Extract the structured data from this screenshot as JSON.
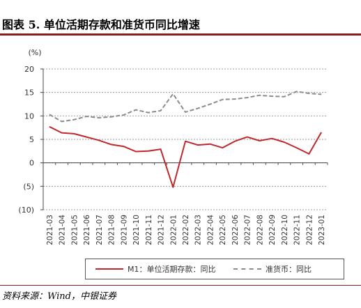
{
  "header": {
    "title": "图表 5. 单位活期存款和准货币同比增速"
  },
  "footer": {
    "source": "资料来源：Wind，中银证券"
  },
  "chart_data": {
    "type": "line",
    "unit_label": "(%)",
    "categories": [
      "2021-03",
      "2021-04",
      "2021-05",
      "2021-06",
      "2021-07",
      "2021-08",
      "2021-09",
      "2021-10",
      "2021-11",
      "2021-12",
      "2022-01",
      "2022-02",
      "2022-03",
      "2022-04",
      "2022-05",
      "2022-06",
      "2022-07",
      "2022-08",
      "2022-09",
      "2022-10",
      "2022-11",
      "2022-12",
      "2023-01"
    ],
    "ylim": [
      -10,
      20
    ],
    "yticks": [
      {
        "value": 20,
        "label": "20"
      },
      {
        "value": 15,
        "label": "15"
      },
      {
        "value": 10,
        "label": "10"
      },
      {
        "value": 5,
        "label": "5"
      },
      {
        "value": 0,
        "label": "0"
      },
      {
        "value": -5,
        "label": "(5)"
      },
      {
        "value": -10,
        "label": "(10)"
      }
    ],
    "grid": "horizontal-dashed",
    "legend_position": "bottom",
    "series": [
      {
        "name": "M1：单位活期存款：同比",
        "color": "#c0272d",
        "style": "solid",
        "values": [
          7.7,
          6.4,
          6.2,
          5.5,
          4.8,
          3.9,
          3.5,
          2.4,
          2.5,
          2.9,
          -5.2,
          4.6,
          3.8,
          4.0,
          3.2,
          4.6,
          5.5,
          4.7,
          5.2,
          4.4,
          3.2,
          1.9,
          6.5
        ]
      },
      {
        "name": "准货币：同比",
        "color": "#8c8c8c",
        "style": "dashed",
        "values": [
          10.3,
          8.8,
          9.2,
          9.9,
          9.6,
          9.8,
          10.2,
          11.3,
          10.7,
          11.1,
          14.7,
          10.8,
          11.6,
          12.5,
          13.5,
          13.6,
          13.9,
          14.4,
          14.2,
          14.1,
          15.2,
          14.8,
          14.6
        ]
      }
    ]
  }
}
